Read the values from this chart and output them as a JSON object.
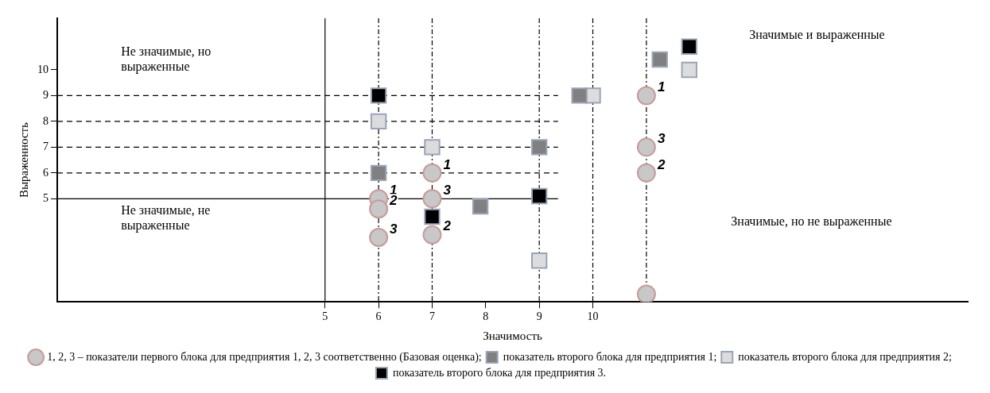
{
  "chart_data": {
    "type": "scatter",
    "xlabel": "Значимость",
    "ylabel": "Выраженность",
    "xlim": [
      0,
      17
    ],
    "ylim": [
      1,
      12
    ],
    "xticks": [
      5,
      6,
      7,
      8,
      9,
      10
    ],
    "yticks": [
      5,
      6,
      7,
      8,
      9,
      10
    ],
    "legend": "bottom",
    "series": [
      {
        "name": "1, 2, 3 – показатели первого блока для предприятия 1, 2, 3 соответственно (Базовая оценка);",
        "color": "#c8c8c8",
        "marker": "circle",
        "x": [
          11,
          11,
          11,
          7,
          6,
          6,
          6,
          7,
          7,
          11
        ],
        "values": [
          9,
          7,
          6,
          6,
          5,
          4.6,
          3.5,
          5,
          3.6,
          1.3
        ]
      },
      {
        "name": "показатель второго блока для предприятия 1;",
        "color": "#808080",
        "marker": "square",
        "x": [
          6,
          9,
          7.9,
          9.75,
          11.25
        ],
        "values": [
          6,
          7,
          4.7,
          9,
          10.4
        ]
      },
      {
        "name": "показатель второго блока для предприятия 2;",
        "color": "#dcdcdc",
        "marker": "square",
        "x": [
          6,
          7,
          10,
          11.8,
          9
        ],
        "values": [
          8,
          7,
          9,
          10,
          2.6
        ]
      },
      {
        "name": "показатель второго блока для предприятия 3.",
        "color": "#000000",
        "marker": "square",
        "x": [
          6,
          9,
          7,
          11.8
        ],
        "values": [
          9,
          5.1,
          4.3,
          10.9
        ]
      }
    ],
    "ref_lines": [
      {
        "axis": "x",
        "value": 5,
        "line_style": "solid"
      },
      {
        "axis": "y",
        "value": 5,
        "line_style": "solid"
      },
      {
        "axis": "y",
        "value": 6,
        "line_style": "dashed"
      },
      {
        "axis": "y",
        "value": 7,
        "line_style": "dashed"
      },
      {
        "axis": "y",
        "value": 8,
        "line_style": "dashed"
      },
      {
        "axis": "y",
        "value": 9,
        "line_style": "dashed"
      },
      {
        "axis": "x",
        "value": 6,
        "line_style": "dotted"
      },
      {
        "axis": "x",
        "value": 7,
        "line_style": "dotted"
      },
      {
        "axis": "x",
        "value": 9,
        "line_style": "dotted"
      },
      {
        "axis": "x",
        "value": 10,
        "line_style": "dotted"
      },
      {
        "axis": "x",
        "value": 11,
        "line_style": "dotted"
      }
    ],
    "annotations": [
      "Не значимые, но выраженные",
      "Не значимые, не выраженные",
      "Значимые и выраженные",
      "Значимые, но не выраженные",
      {
        "text": "1",
        "x": 11,
        "y": 9
      },
      {
        "text": "3",
        "x": 11,
        "y": 7
      },
      {
        "text": "2",
        "x": 11,
        "y": 6
      },
      {
        "text": "1",
        "x": 7,
        "y": 6
      },
      {
        "text": "1",
        "x": 6,
        "y": 5
      },
      {
        "text": "2",
        "x": 6,
        "y": 4.6
      },
      {
        "text": "3",
        "x": 6,
        "y": 3.5
      },
      {
        "text": "3",
        "x": 7,
        "y": 5
      },
      {
        "text": "2",
        "x": 7,
        "y": 3.6
      }
    ]
  }
}
